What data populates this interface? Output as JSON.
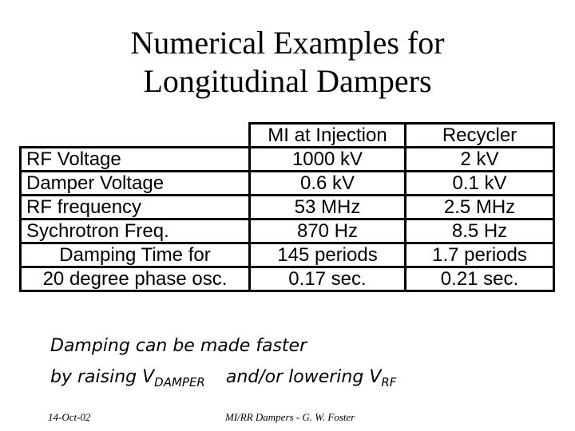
{
  "title": {
    "line1": "Numerical Examples for",
    "line2": "Longitudinal Dampers"
  },
  "table": {
    "headers": [
      "",
      "MI at Injection",
      "Recycler"
    ],
    "rows": [
      {
        "label": "RF Voltage",
        "mi": "1000 kV",
        "recycler": "2 kV"
      },
      {
        "label": "Damper Voltage",
        "mi": "0.6 kV",
        "recycler": "0.1 kV"
      },
      {
        "label": "RF frequency",
        "mi": "53 MHz",
        "recycler": "2.5 MHz"
      },
      {
        "label": "Sychrotron Freq.",
        "mi": "870 Hz",
        "recycler": "8.5 Hz"
      }
    ],
    "damping": {
      "label_line1": "Damping Time for",
      "label_line2": "20 degree phase osc.",
      "mi_periods": "145 periods",
      "recycler_periods": "1.7 periods",
      "mi_sec": "0.17 sec.",
      "recycler_sec": "0.21 sec."
    }
  },
  "note": {
    "line1": "Damping can be made faster",
    "line2_a": "by raising V",
    "line2_sub1": "DAMPER",
    "line2_b": "and/or  lowering V",
    "line2_sub2": "RF"
  },
  "footer": {
    "date": "14-Oct-02",
    "center": "MI/RR Dampers - G. W. Foster"
  }
}
